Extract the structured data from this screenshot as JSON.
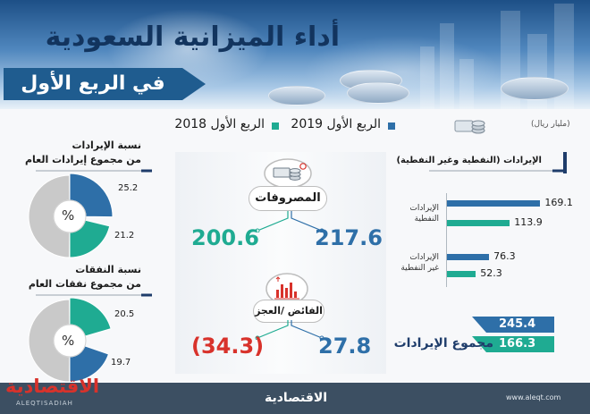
{
  "header": {
    "title": "أداء الميزانية السعودية",
    "subtitle": "في الربع الأول"
  },
  "legend": {
    "q2019": "الربع الأول 2019",
    "q2018": "الربع الأول 2018"
  },
  "unit": "(مليار ريال)",
  "revenue_panel": {
    "title": "الإيرادات (النفطية وغير النفطية)",
    "oil_label_1": "الإيرادات",
    "oil_label_2": "النفطية",
    "nonoil_label_1": "الإيرادات",
    "nonoil_label_2": "غير النفطية",
    "total_label": "مجموع الإيرادات"
  },
  "center_panel": {
    "expenditure_label": "المصروفات",
    "surplus_label": "الفائض /العجز"
  },
  "left_panel": {
    "rev_share_title_1": "نسبة الإيرادات",
    "rev_share_title_2": "من مجموع إيرادات العام",
    "exp_share_title_1": "نسبة النفقات",
    "exp_share_title_2": "من مجموع نفقات العام",
    "percent_symbol": "%"
  },
  "footer": {
    "brand_left": "الاقتصادية",
    "brand_left_latin": "ALEQTISADIAH",
    "brand_center": "الاقتصادية",
    "url": "www.aleqt.com"
  },
  "colors": {
    "q2019": "#2e6fa8",
    "q2018": "#1fab92",
    "grey": "#c9c9c9",
    "navy": "#1f3d6b"
  },
  "icons": [
    "coins-icon",
    "money-stack-icon",
    "bar-chart-icon"
  ],
  "chart_data": [
    {
      "type": "bar",
      "title": "الإيرادات (النفطية وغير النفطية)",
      "categories": [
        "الإيرادات النفطية",
        "الإيرادات غير النفطية"
      ],
      "series": [
        {
          "name": "الربع الأول 2019",
          "values": [
            169.1,
            76.3
          ]
        },
        {
          "name": "الربع الأول 2018",
          "values": [
            113.9,
            52.3
          ]
        }
      ],
      "value_labels": {
        "oil_2019": "169.1",
        "oil_2018": "113.9",
        "nonoil_2019": "76.3",
        "nonoil_2018": "52.3"
      },
      "xlim": [
        0,
        175
      ]
    },
    {
      "type": "table",
      "title": "مجموع الإيرادات",
      "series": [
        {
          "name": "الربع الأول 2019",
          "values": [
            245.4
          ]
        },
        {
          "name": "الربع الأول 2018",
          "values": [
            166.3
          ]
        }
      ],
      "value_labels": {
        "y2019": "245.4",
        "y2018": "166.3"
      }
    },
    {
      "type": "table",
      "title": "المصروفات",
      "series": [
        {
          "name": "الربع الأول 2019",
          "values": [
            217.6
          ]
        },
        {
          "name": "الربع الأول 2018",
          "values": [
            200.6
          ]
        }
      ],
      "value_labels": {
        "y2019": "217.6",
        "y2018": "200.6"
      }
    },
    {
      "type": "table",
      "title": "الفائض /العجز",
      "series": [
        {
          "name": "الربع الأول 2019",
          "values": [
            27.8
          ]
        },
        {
          "name": "الربع الأول 2018",
          "values": [
            -34.3
          ]
        }
      ],
      "value_labels": {
        "y2019": "27.8",
        "y2018": "(34.3)"
      }
    },
    {
      "type": "pie",
      "title": "نسبة الإيرادات من مجموع إيرادات العام",
      "series": [
        {
          "name": "الربع الأول 2019",
          "values": [
            25.2
          ]
        },
        {
          "name": "الربع الأول 2018",
          "values": [
            21.2
          ]
        }
      ],
      "value_labels": {
        "y2019": "25.2",
        "y2018": "21.2"
      }
    },
    {
      "type": "pie",
      "title": "نسبة النفقات من مجموع نفقات العام",
      "series": [
        {
          "name": "الربع الأول 2019",
          "values": [
            20.5
          ]
        },
        {
          "name": "الربع الأول 2018",
          "values": [
            19.7
          ]
        }
      ],
      "value_labels": {
        "y2019": "20.5",
        "y2018": "19.7"
      }
    }
  ]
}
